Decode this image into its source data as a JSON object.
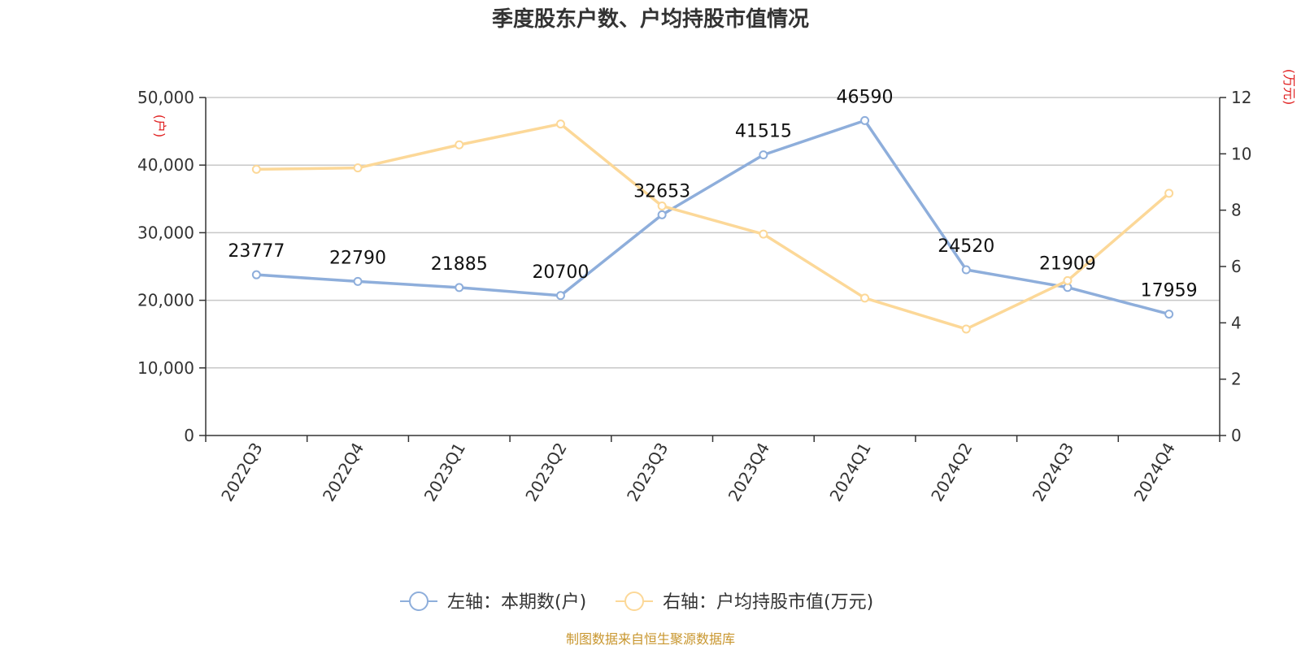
{
  "title": "季度股东户数、户均持股市值情况",
  "source": "制图数据来自恒生聚源数据库",
  "colors": {
    "series_left": "#8eaedb",
    "series_right": "#fcd898",
    "grid": "#c8c8c8",
    "axis": "#333333",
    "unit": "#e02020",
    "source": "#c8962e"
  },
  "chart_data": {
    "type": "line",
    "categories": [
      "2022Q3",
      "2022Q4",
      "2023Q1",
      "2023Q2",
      "2023Q3",
      "2023Q4",
      "2024Q1",
      "2024Q2",
      "2024Q3",
      "2024Q4"
    ],
    "left_axis": {
      "unit": "(户)",
      "ylim": [
        0,
        50000
      ],
      "ticks": [
        0,
        10000,
        20000,
        30000,
        40000,
        50000
      ],
      "tick_labels": [
        "0",
        "10,000",
        "20,000",
        "30,000",
        "40,000",
        "50,000"
      ]
    },
    "right_axis": {
      "unit": "(万元)",
      "ylim": [
        0,
        12
      ],
      "ticks": [
        0,
        2,
        4,
        6,
        8,
        10,
        12
      ],
      "tick_labels": [
        "0",
        "2",
        "4",
        "6",
        "8",
        "10",
        "12"
      ]
    },
    "series": [
      {
        "name": "左轴：本期数(户)",
        "axis": "left",
        "values": [
          23777,
          22790,
          21885,
          20700,
          32653,
          41515,
          46590,
          24520,
          21909,
          17959
        ],
        "labels": [
          "23777",
          "22790",
          "21885",
          "20700",
          "32653",
          "41515",
          "46590",
          "24520",
          "21909",
          "17959"
        ]
      },
      {
        "name": "右轴：户均持股市值(万元)",
        "axis": "right",
        "values": [
          9.45,
          9.5,
          10.32,
          11.06,
          8.15,
          7.15,
          4.88,
          3.78,
          5.5,
          8.6
        ]
      }
    ],
    "grid": true,
    "legend_position": "bottom-center"
  }
}
